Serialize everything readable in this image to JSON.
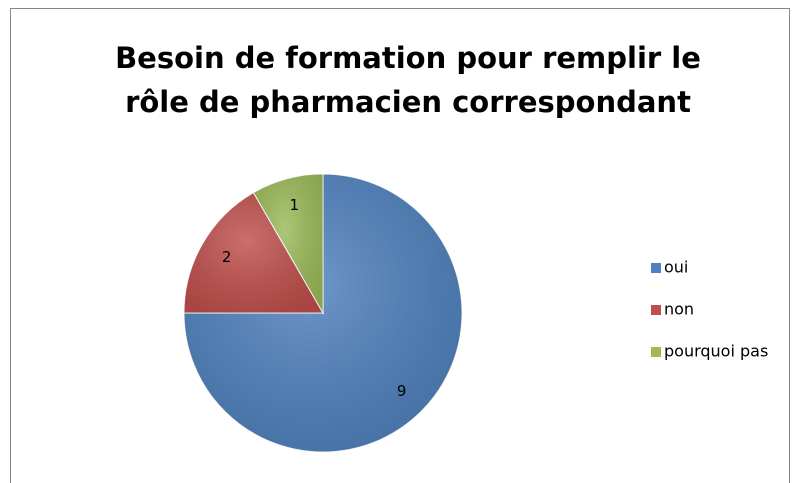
{
  "chart_data": {
    "type": "pie",
    "title": [
      "Besoin de formation pour remplir le",
      "rôle de pharmacien correspondant"
    ],
    "categories": [
      "oui",
      "non",
      "pourquoi pas"
    ],
    "values": [
      9,
      2,
      1
    ],
    "colors": [
      "#4f81bd",
      "#c0504d",
      "#9bbb59"
    ],
    "legend": "right"
  }
}
